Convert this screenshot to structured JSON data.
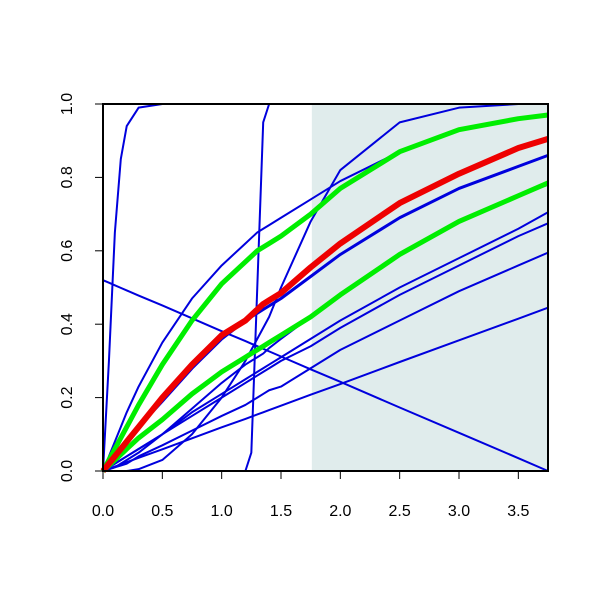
{
  "chart_data": {
    "type": "line",
    "x": [
      0,
      0.05,
      0.1,
      0.15,
      0.2,
      0.3,
      0.5,
      0.75,
      1,
      1.2,
      1.25,
      1.3,
      1.35,
      1.4,
      1.5,
      1.75,
      2,
      2.5,
      3,
      3.5,
      3.75
    ],
    "xlim": [
      0,
      3.75
    ],
    "ylim": [
      0,
      1
    ],
    "xticks": [
      {
        "value": 0,
        "label": "0.0"
      },
      0.5,
      {
        "value": 1,
        "label": "1.0"
      },
      1.5,
      {
        "value": 2,
        "label": "2.0"
      },
      2.5,
      {
        "value": 3,
        "label": "3.0"
      },
      3.5
    ],
    "yticks": [
      {
        "value": 0,
        "label": "0.0"
      },
      0.2,
      0.4,
      0.6,
      0.8,
      {
        "value": 1,
        "label": "1.0"
      }
    ],
    "shade": {
      "x": [
        1.76,
        3.75
      ],
      "color": "#e0ecec"
    },
    "series": [
      {
        "color": "#0000dd",
        "width": 2,
        "values": [
          0,
          0.3,
          0.65,
          0.85,
          0.94,
          0.99,
          1,
          1,
          1,
          1,
          1,
          1,
          1,
          1,
          1,
          1,
          1,
          1,
          1,
          1,
          1
        ]
      },
      {
        "color": "#0000dd",
        "width": 2,
        "values": [
          0,
          0,
          0,
          0,
          0,
          0,
          0,
          0,
          0,
          0,
          0.05,
          0.5,
          0.95,
          1,
          1,
          1,
          1,
          1,
          1,
          1,
          1
        ]
      },
      {
        "color": "#0000dd",
        "width": 2,
        "values": [
          0.52,
          0.513,
          0.506,
          0.499,
          0.492,
          0.478,
          0.451,
          0.416,
          0.381,
          0.354,
          0.347,
          0.34,
          0.333,
          0.326,
          0.312,
          0.277,
          0.243,
          0.173,
          0.104,
          0.035,
          0
        ]
      },
      {
        "color": "#0000dd",
        "width": 2,
        "values": [
          0,
          0,
          0,
          0,
          0,
          0.005,
          0.03,
          0.1,
          0.2,
          0.3,
          0.33,
          0.36,
          0.39,
          0.42,
          0.5,
          0.68,
          0.82,
          0.95,
          0.99,
          1,
          1
        ]
      },
      {
        "color": "#0000dd",
        "width": 2,
        "values": [
          0,
          0.04,
          0.08,
          0.12,
          0.16,
          0.23,
          0.35,
          0.47,
          0.56,
          0.62,
          0.635,
          0.65,
          0.66,
          0.67,
          0.69,
          0.74,
          0.79,
          0.87,
          0.93,
          0.96,
          0.97
        ]
      },
      {
        "color": "#0000dd",
        "width": 2,
        "values": [
          0,
          0.005,
          0.01,
          0.02,
          0.03,
          0.05,
          0.1,
          0.17,
          0.24,
          0.29,
          0.3,
          0.31,
          0.32,
          0.335,
          0.36,
          0.42,
          0.48,
          0.59,
          0.68,
          0.75,
          0.78
        ]
      },
      {
        "color": "#0000dd",
        "width": 2,
        "values": [
          0,
          0.01,
          0.02,
          0.03,
          0.04,
          0.06,
          0.1,
          0.16,
          0.21,
          0.25,
          0.26,
          0.27,
          0.28,
          0.29,
          0.31,
          0.36,
          0.41,
          0.5,
          0.58,
          0.66,
          0.705
        ]
      },
      {
        "color": "#0000dd",
        "width": 2,
        "values": [
          0,
          0.01,
          0.02,
          0.03,
          0.04,
          0.06,
          0.1,
          0.15,
          0.2,
          0.24,
          0.25,
          0.26,
          0.27,
          0.28,
          0.3,
          0.34,
          0.39,
          0.48,
          0.56,
          0.64,
          0.675
        ]
      },
      {
        "color": "#0000dd",
        "width": 2,
        "values": [
          0,
          0.005,
          0.01,
          0.015,
          0.02,
          0.04,
          0.07,
          0.11,
          0.15,
          0.18,
          0.19,
          0.2,
          0.21,
          0.22,
          0.23,
          0.28,
          0.33,
          0.41,
          0.49,
          0.56,
          0.595
        ]
      },
      {
        "color": "#0000dd",
        "width": 2,
        "values": [
          0,
          0.006,
          0.012,
          0.018,
          0.024,
          0.036,
          0.059,
          0.089,
          0.119,
          0.142,
          0.148,
          0.154,
          0.16,
          0.166,
          0.178,
          0.208,
          0.237,
          0.297,
          0.356,
          0.415,
          0.445
        ]
      },
      {
        "color": "#00ee00",
        "width": 5,
        "values": [
          0,
          0.03,
          0.06,
          0.09,
          0.12,
          0.18,
          0.29,
          0.41,
          0.51,
          0.57,
          0.585,
          0.6,
          0.61,
          0.62,
          0.64,
          0.7,
          0.77,
          0.87,
          0.93,
          0.96,
          0.97
        ]
      },
      {
        "color": "#00ee00",
        "width": 5,
        "values": [
          0,
          0.015,
          0.03,
          0.045,
          0.06,
          0.09,
          0.14,
          0.21,
          0.27,
          0.31,
          0.32,
          0.33,
          0.34,
          0.35,
          0.37,
          0.42,
          0.48,
          0.59,
          0.68,
          0.75,
          0.785
        ]
      },
      {
        "color": "#0000dd",
        "width": 3,
        "values": [
          0,
          0.02,
          0.04,
          0.06,
          0.08,
          0.12,
          0.19,
          0.28,
          0.36,
          0.41,
          0.42,
          0.43,
          0.44,
          0.45,
          0.47,
          0.53,
          0.59,
          0.69,
          0.77,
          0.83,
          0.86
        ]
      },
      {
        "color": "#ee0000",
        "width": 6,
        "values": [
          0,
          0.02,
          0.04,
          0.06,
          0.08,
          0.12,
          0.2,
          0.29,
          0.37,
          0.41,
          0.425,
          0.44,
          0.455,
          0.465,
          0.485,
          0.555,
          0.62,
          0.73,
          0.81,
          0.88,
          0.905
        ]
      }
    ]
  }
}
